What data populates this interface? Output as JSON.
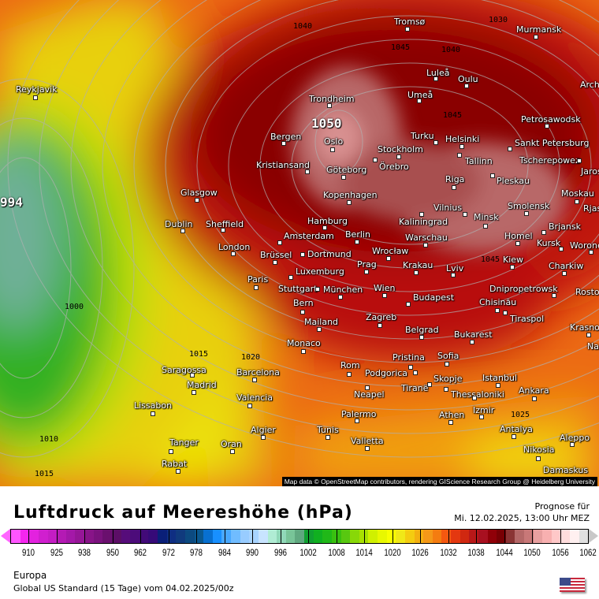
{
  "map": {
    "credit": "Map data © OpenStreetMap contributors, rendering GIScience Research Group @ Heidelberg University",
    "cities": [
      "Reykjavik",
      "Tromsø",
      "Murmansk",
      "Luleå",
      "Oulu",
      "Umeå",
      "Arch",
      "Trondheim",
      "Petrosawodsk",
      "Bergen",
      "Oslo",
      "Turku",
      "Helsinki",
      "Stockholm",
      "Sankt Petersburg",
      "Kristiansand",
      "Göteborg",
      "Örebro",
      "Tallinn",
      "Tscherepowez",
      "Jaros",
      "Riga",
      "Pleskau",
      "Glasgow",
      "Kopenhagen",
      "Moskau",
      "Vilnius",
      "Smolensk",
      "Rjas",
      "Dublin",
      "Sheffield",
      "Hamburg",
      "Kaliningrad",
      "Minsk",
      "Brjansk",
      "Amsterdam",
      "Berlin",
      "Warschau",
      "Homel",
      "Kursk",
      "Woronesch",
      "London",
      "Brüssel",
      "Dortmund",
      "Wrocław",
      "Kiew",
      "Prag",
      "Krakau",
      "Charkiw",
      "Paris",
      "Luxemburg",
      "Lviv",
      "Stuttgart",
      "München",
      "Wien",
      "Dnipropetrowsk",
      "Rosto",
      "Budapest",
      "Chisinău",
      "Tiraspol",
      "Bern",
      "Zagreb",
      "Mailand",
      "Krasno",
      "Belgrad",
      "Bukarest",
      "Monaco",
      "Pristina",
      "Sofia",
      "Saragossa",
      "Barcelona",
      "Madrid",
      "Rom",
      "Podgorica",
      "Skopje",
      "Istanbul",
      "Tiranë",
      "Ankara",
      "Thessaloniki",
      "Lissabon",
      "Valencia",
      "Neapel",
      "Palermo",
      "Athen",
      "Izmir",
      "Antalya",
      "Aleppo",
      "Algier",
      "Tunis",
      "Valletta",
      "Nikosia",
      "Tanger",
      "Oran",
      "Rabat",
      "Damaskus",
      "Na"
    ],
    "isobar_labels": [
      "1040",
      "1045",
      "1040",
      "1050",
      "1045",
      "1045",
      "994",
      "1000",
      "1010",
      "1015",
      "1015",
      "1020",
      "1025",
      "1030"
    ]
  },
  "legend": {
    "title": "Luftdruck auf Meereshöhe (hPa)",
    "forecast_label": "Prognose für",
    "forecast_time": "Mi. 12.02.2025, 13:00 Uhr MEZ",
    "ticks": [
      "910",
      "925",
      "938",
      "950",
      "962",
      "972",
      "978",
      "984",
      "990",
      "996",
      "1002",
      "1008",
      "1014",
      "1020",
      "1026",
      "1032",
      "1038",
      "1044",
      "1050",
      "1056",
      "1062"
    ],
    "colors": [
      "#ff55ff",
      "#f526ef",
      "#e322df",
      "#d01fcf",
      "#c41dc4",
      "#b41ab4",
      "#a418a8",
      "#961697",
      "#881488",
      "#7a127d",
      "#6a106e",
      "#5c0e66",
      "#560c7a",
      "#4c0c7a",
      "#420a78",
      "#360a78",
      "#0a1f78",
      "#0f2e82",
      "#103a7d",
      "#0c4a80",
      "#0a5890",
      "#0870d0",
      "#1890ff",
      "#48a8ff",
      "#70bcff",
      "#98ccff",
      "#a8d4ff",
      "#c8e4ff",
      "#b0ecd4",
      "#90d8b8",
      "#78c498",
      "#60a880",
      "#10a030",
      "#10b020",
      "#20b818",
      "#38c010",
      "#58c810",
      "#88d808",
      "#a8e000",
      "#d0f000",
      "#e8f800",
      "#f8ff00",
      "#f0e818",
      "#f4cc10",
      "#f4b010",
      "#f49818",
      "#f47c10",
      "#f45810",
      "#e43810",
      "#d02810",
      "#b81818",
      "#a81020",
      "#900008",
      "#780004",
      "#8a3434",
      "#b46868",
      "#c87878",
      "#e8a0a0",
      "#f8b0b0",
      "#ffc8c8",
      "#ffdcdc",
      "#fff0f0",
      "#e0e0e0"
    ]
  },
  "footer": {
    "region": "Europa",
    "model": "Global US Standard (15 Tage) vom  04.02.2025/00z"
  }
}
